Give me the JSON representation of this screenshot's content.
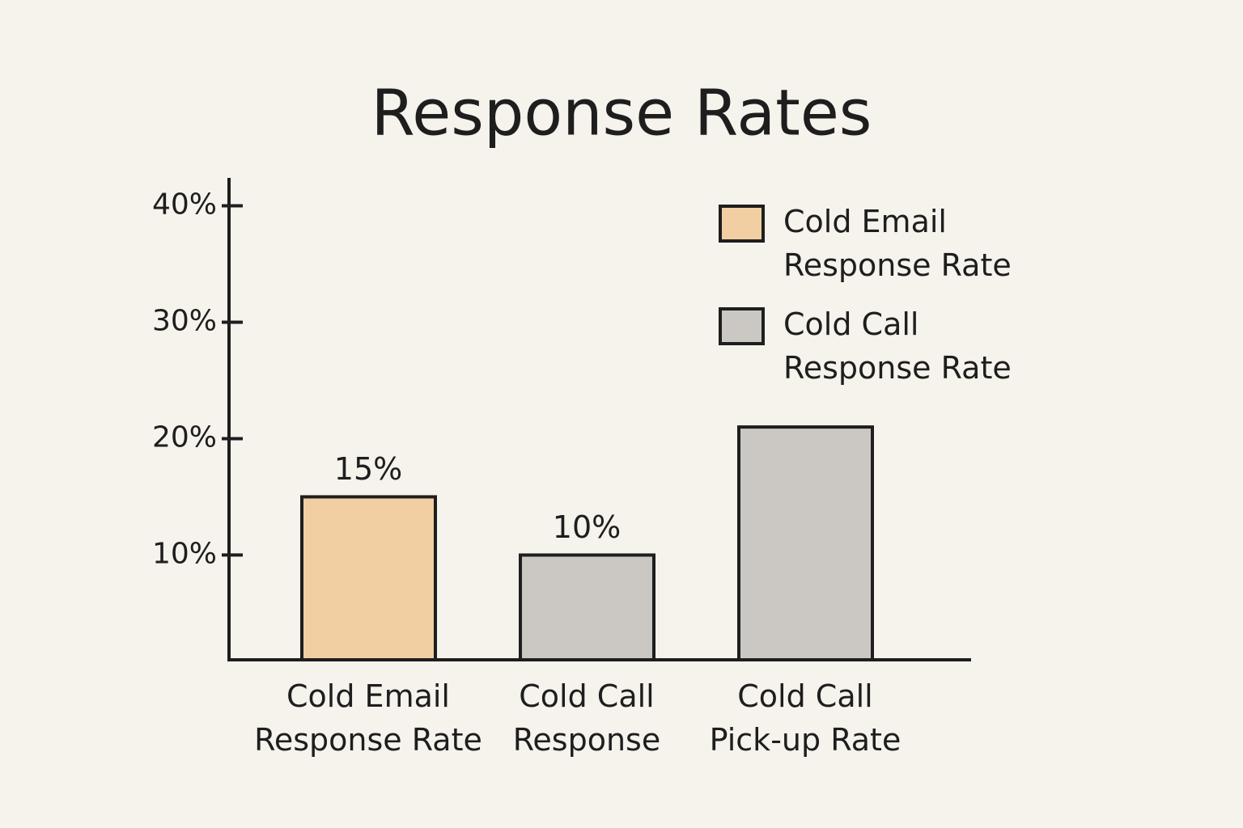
{
  "chart_data": {
    "type": "bar",
    "title": "Response Rates",
    "categories": [
      "Cold Email Response Rate",
      "Cold Call Response",
      "Cold Call Pick-up Rate"
    ],
    "values": [
      15,
      10,
      21
    ],
    "value_labels": [
      "15%",
      "10%",
      null
    ],
    "colors": [
      "#f2cfa3",
      "#cbc8c4",
      "#cbc8c4"
    ],
    "legend": [
      {
        "name": "Cold Email Response Rate",
        "color": "#f2cfa3"
      },
      {
        "name": "Cold Call Response Rate",
        "color": "#cbc8c4"
      }
    ],
    "legend_position": "upper right",
    "ylim": [
      1,
      42.4
    ],
    "yticks": [
      {
        "value": 10,
        "label": "10%"
      },
      {
        "value": 20,
        "label": "20%"
      },
      {
        "value": 30,
        "label": "30%"
      },
      {
        "value": 40,
        "label": "40%"
      }
    ],
    "grid": false
  }
}
